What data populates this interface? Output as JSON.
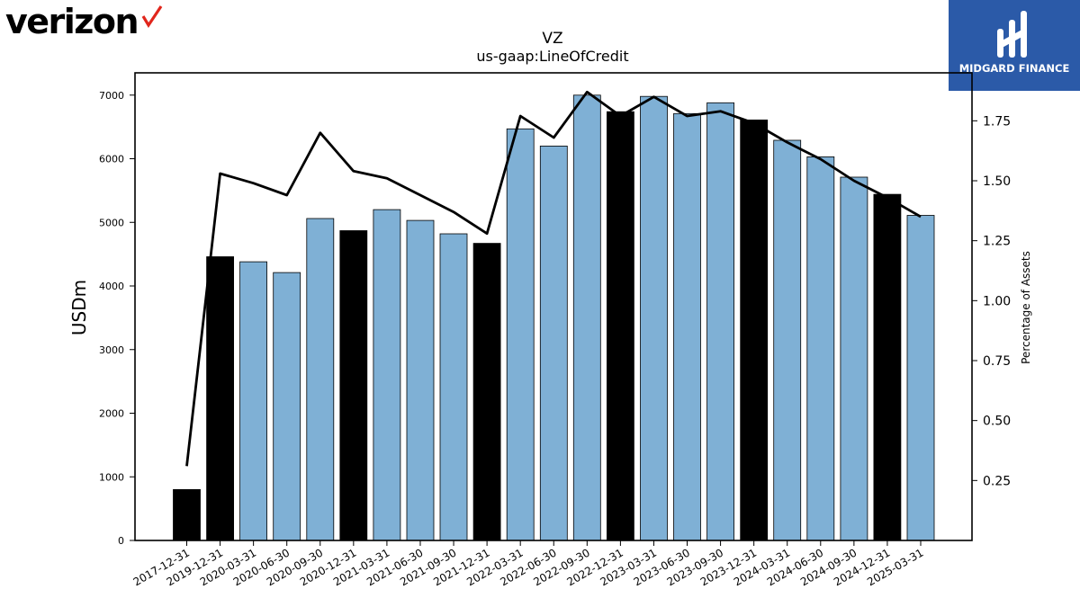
{
  "branding": {
    "left_logo": "verizon",
    "right_logo": "MIDGARD FINANCE",
    "right_logo_bg": "#2b5aa8"
  },
  "chart_data": {
    "type": "bar",
    "title": "VZ",
    "subtitle": "us-gaap:LineOfCredit",
    "ylabel": "USDm",
    "y2label": "Percentage of Assets",
    "ylim": [
      0,
      7350
    ],
    "y2lim": [
      0.0,
      1.95
    ],
    "yticks": [
      0,
      1000,
      2000,
      3000,
      4000,
      5000,
      6000,
      7000
    ],
    "y2ticks": [
      0.25,
      0.5,
      0.75,
      1.0,
      1.25,
      1.5,
      1.75
    ],
    "y2tick_labels": [
      "0.25",
      "0.50",
      "0.75",
      "1.00",
      "1.25",
      "1.50",
      "1.75"
    ],
    "categories": [
      "2017-12-31",
      "2019-12-31",
      "2020-03-31",
      "2020-06-30",
      "2020-09-30",
      "2020-12-31",
      "2021-03-31",
      "2021-06-30",
      "2021-09-30",
      "2021-12-31",
      "2022-03-31",
      "2022-06-30",
      "2022-09-30",
      "2022-12-31",
      "2023-03-31",
      "2023-06-30",
      "2023-09-30",
      "2023-12-31",
      "2024-03-31",
      "2024-06-30",
      "2024-09-30",
      "2024-12-31",
      "2025-03-31"
    ],
    "series": [
      {
        "type": "bar",
        "values": [
          800,
          4460,
          4380,
          4210,
          5060,
          4870,
          5200,
          5030,
          4820,
          4670,
          6470,
          6200,
          7000,
          6740,
          6980,
          6710,
          6880,
          6610,
          6290,
          6030,
          5710,
          5440,
          5110
        ]
      },
      {
        "type": "line",
        "axis": "right",
        "values": [
          0.31,
          1.53,
          1.49,
          1.44,
          1.7,
          1.54,
          1.51,
          1.44,
          1.37,
          1.28,
          1.77,
          1.68,
          1.87,
          1.77,
          1.85,
          1.77,
          1.79,
          1.74,
          1.66,
          1.59,
          1.5,
          1.43,
          1.35
        ]
      }
    ],
    "bar_colors": {
      "quarter": "#7fb0d5",
      "year_end": "#000000"
    },
    "line_color": "#000000",
    "grid": false
  }
}
